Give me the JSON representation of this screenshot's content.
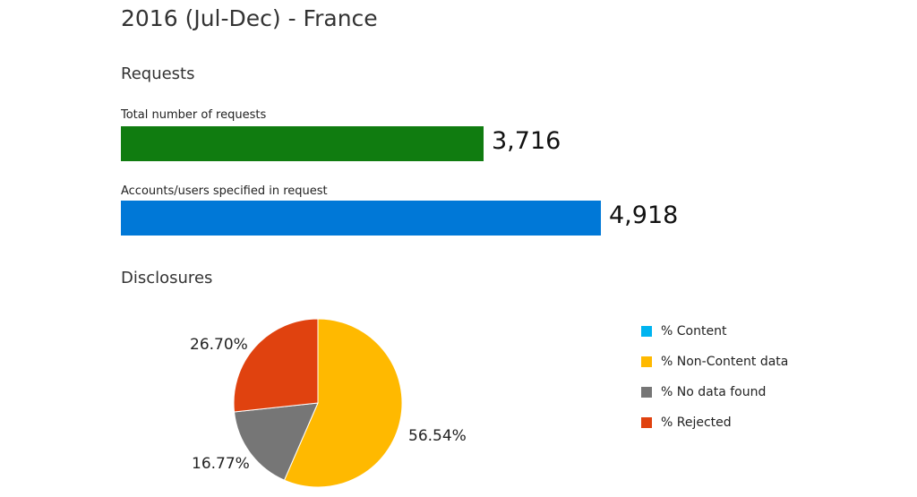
{
  "page": {
    "title": "2016 (Jul-Dec) - France"
  },
  "requests": {
    "heading": "Requests",
    "scale_max": 4918
  },
  "disclosures": {
    "heading": "Disclosures"
  },
  "chart_data": [
    {
      "type": "bar",
      "orientation": "horizontal",
      "categories": [
        "Total number of requests",
        "Accounts/users specified in request"
      ],
      "values": [
        3716,
        4918
      ],
      "value_labels": [
        "3,716",
        "4,918"
      ],
      "colors": [
        "#107c10",
        "#0078d7"
      ]
    },
    {
      "type": "pie",
      "title": "Disclosures",
      "legend_position": "right",
      "slices": [
        {
          "name": "% Content",
          "value": 0,
          "label": "",
          "color": "#00b4f0"
        },
        {
          "name": "% Non-Content data",
          "value": 56.54,
          "label": "56.54%",
          "color": "#ffb900"
        },
        {
          "name": "% No data found",
          "value": 16.77,
          "label": "16.77%",
          "color": "#767676"
        },
        {
          "name": "% Rejected",
          "value": 26.7,
          "label": "26.70%",
          "color": "#e0420f"
        }
      ]
    }
  ]
}
